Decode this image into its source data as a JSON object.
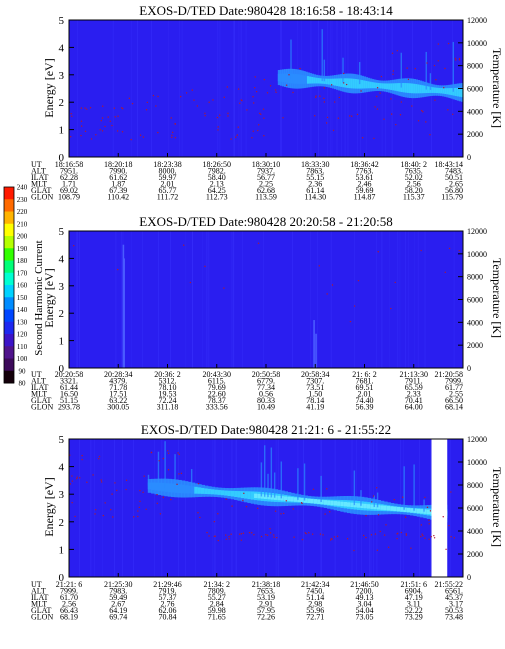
{
  "figure": {
    "colors": {
      "background": "#2a1ef0",
      "band_light": "#2a8cff",
      "band_core": "#33ccff",
      "band_peak": "#66e8ff",
      "dots": "#aa1a3a",
      "frame": "#000000"
    }
  },
  "colorbar": {
    "label": "Second Harmonic Current",
    "ticks": [
      "240",
      "230",
      "220",
      "210",
      "200",
      "190",
      "180",
      "170",
      "160",
      "150",
      "140",
      "130",
      "120",
      "110",
      "100",
      "90",
      "80"
    ],
    "colors": [
      "#ff1a00",
      "#ff6a00",
      "#ffb400",
      "#ffff00",
      "#b4ff00",
      "#32ff00",
      "#00ff78",
      "#00ffd2",
      "#00d2ff",
      "#008cff",
      "#0046ff",
      "#1e28f0",
      "#3c14c8",
      "#50148c",
      "#3c0a5a",
      "#14000a"
    ]
  },
  "chart_data": [
    {
      "type": "heatmap",
      "title": "EXOS-D/TED   Date:980428   18:16:58 - 18:43:14",
      "ylabel": "Energy [eV]",
      "y2label": "Temperature [K]",
      "ylim": [
        0,
        5
      ],
      "yticks": [
        "0",
        "1",
        "2",
        "3",
        "4",
        "5"
      ],
      "y2lim": [
        0,
        12000
      ],
      "y2ticks": [
        "0",
        "2000",
        "4000",
        "6000",
        "8000",
        "10000",
        "12000"
      ],
      "band": {
        "x_start": 0.53,
        "x_end": 1.0,
        "y_start": 2.9,
        "y_end": 2.35
      },
      "table": {
        "labels": [
          "UT",
          "ALT",
          "ILAT",
          "MLT",
          "GLAT",
          "GLON"
        ],
        "columns": [
          [
            "18:16:58",
            "7951.",
            "62.28",
            "1.71",
            "69.02",
            "108.79"
          ],
          [
            "18:20:18",
            "7990.",
            "61.62",
            "1.87",
            "67.39",
            "110.42"
          ],
          [
            "18:23:38",
            "8000.",
            "59.97",
            "2.01",
            "65.77",
            "111.72"
          ],
          [
            "18:26:50",
            "7982.",
            "58.40",
            "2.13",
            "64.25",
            "112.73"
          ],
          [
            "18:30:10",
            "7937.",
            "56.77",
            "2.25",
            "62.68",
            "113.59"
          ],
          [
            "18:33:30",
            "7863.",
            "55.15",
            "2.36",
            "61.14",
            "114.30"
          ],
          [
            "18:36:42",
            "7763.",
            "53.61",
            "2.46",
            "59.69",
            "114.87"
          ],
          [
            "18:40: 2",
            "7635.",
            "52.02",
            "2.56",
            "58.20",
            "115.37"
          ],
          [
            "18:43:14",
            "7483.",
            "50.51",
            "2.65",
            "56.80",
            "115.79"
          ]
        ]
      }
    },
    {
      "type": "heatmap",
      "title": "EXOS-D/TED   Date:980428   20:20:58 - 21:20:58",
      "ylabel": "Energy [eV]",
      "y2label": "Temperature [K]",
      "ylim": [
        0,
        5
      ],
      "yticks": [
        "0",
        "1",
        "2",
        "3",
        "4",
        "5"
      ],
      "y2lim": [
        0,
        12000
      ],
      "y2ticks": [
        "0",
        "2000",
        "4000",
        "6000",
        "8000",
        "10000",
        "12000"
      ],
      "table": {
        "labels": [
          "UT",
          "ALT",
          "ILAT",
          "MLT",
          "GLAT",
          "GLON"
        ],
        "columns": [
          [
            "20:20:58",
            "3321.",
            "61.44",
            "16.50",
            "51.15",
            "293.78"
          ],
          [
            "20:28:34",
            "4379.",
            "71.78",
            "17.51",
            "63.22",
            "300.05"
          ],
          [
            "20:36: 2",
            "5312.",
            "78.10",
            "19.53",
            "72.24",
            "311.18"
          ],
          [
            "20:43:30",
            "6115.",
            "79.69",
            "22.60",
            "78.37",
            "333.56"
          ],
          [
            "20:50:58",
            "6779.",
            "77.34",
            "0.56",
            "80.33",
            "10.49"
          ],
          [
            "20:58:34",
            "7307.",
            "73.51",
            "1.50",
            "78.14",
            "41.19"
          ],
          [
            "21: 6: 2",
            "7681.",
            "69.51",
            "2.01",
            "74.40",
            "56.39"
          ],
          [
            "21:13:30",
            "7911.",
            "65.59",
            "2.33",
            "70.41",
            "64.00"
          ],
          [
            "21:20:58",
            "7999.",
            "61.77",
            "2.55",
            "66.50",
            "68.14"
          ]
        ]
      }
    },
    {
      "type": "heatmap",
      "title": "EXOS-D/TED   Date:980428   21:21: 6 - 21:55:22",
      "ylabel": "Energy [eV]",
      "y2label": "Temperature [K]",
      "ylim": [
        0,
        5
      ],
      "yticks": [
        "0",
        "1",
        "2",
        "3",
        "4",
        "5"
      ],
      "y2lim": [
        0,
        12000
      ],
      "y2ticks": [
        "0",
        "2000",
        "4000",
        "6000",
        "8000",
        "10000",
        "12000"
      ],
      "band": {
        "x_start": 0.2,
        "x_end": 0.95,
        "y_start": 3.3,
        "y_end": 2.3
      },
      "table": {
        "labels": [
          "UT",
          "ALT",
          "ILAT",
          "MLT",
          "GLAT",
          "GLON"
        ],
        "columns": [
          [
            "21:21: 6",
            "7999.",
            "61.70",
            "2.56",
            "66.43",
            "68.19"
          ],
          [
            "21:25:30",
            "7983.",
            "59.49",
            "2.67",
            "64.19",
            "69.74"
          ],
          [
            "21:29:46",
            "7919.",
            "57.37",
            "2.76",
            "62.06",
            "70.84"
          ],
          [
            "21:34: 2",
            "7809.",
            "55.27",
            "2.84",
            "59.98",
            "71.65"
          ],
          [
            "21:38:18",
            "7653.",
            "53.19",
            "2.91",
            "57.95",
            "72.26"
          ],
          [
            "21:42:34",
            "7450.",
            "51.14",
            "2.98",
            "55.96",
            "72.71"
          ],
          [
            "21:46:50",
            "7200.",
            "49.13",
            "3.04",
            "54.04",
            "73.05"
          ],
          [
            "21:51: 6",
            "6904.",
            "47.19",
            "3.11",
            "52.22",
            "73.29"
          ],
          [
            "21:55:22",
            "6561.",
            "45.37",
            "3.17",
            "50.53",
            "73.48"
          ]
        ]
      }
    }
  ]
}
